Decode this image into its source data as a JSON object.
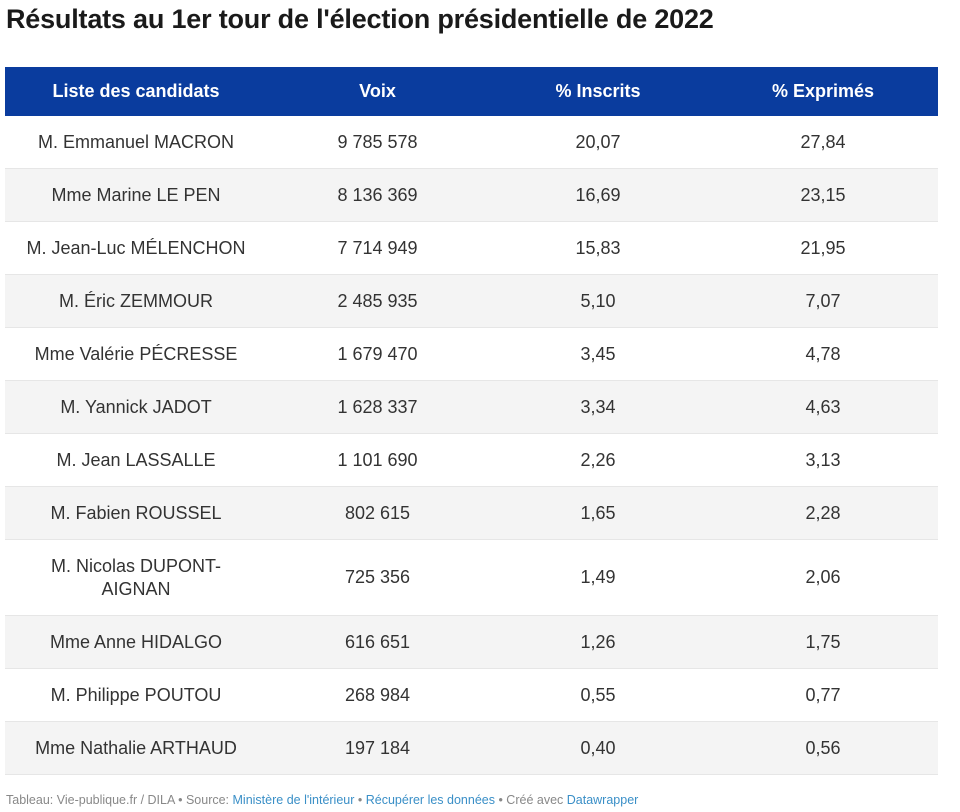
{
  "title": "Résultats au 1er tour de l'élection présidentielle de 2022",
  "chart_data": {
    "type": "table",
    "columns": [
      "Liste des candidats",
      "Voix",
      "% Inscrits",
      "% Exprimés"
    ],
    "rows": [
      [
        "M. Emmanuel MACRON",
        "9 785 578",
        "20,07",
        "27,84"
      ],
      [
        "Mme Marine LE PEN",
        "8 136 369",
        "16,69",
        "23,15"
      ],
      [
        "M. Jean-Luc MÉLENCHON",
        "7 714 949",
        "15,83",
        "21,95"
      ],
      [
        "M. Éric ZEMMOUR",
        "2 485 935",
        "5,10",
        "7,07"
      ],
      [
        "Mme Valérie PÉCRESSE",
        "1 679 470",
        "3,45",
        "4,78"
      ],
      [
        "M. Yannick JADOT",
        "1 628 337",
        "3,34",
        "4,63"
      ],
      [
        "M. Jean LASSALLE",
        "1 101 690",
        "2,26",
        "3,13"
      ],
      [
        "M. Fabien ROUSSEL",
        "802 615",
        "1,65",
        "2,28"
      ],
      [
        "M. Nicolas DUPONT-AIGNAN",
        "725 356",
        "1,49",
        "2,06"
      ],
      [
        "Mme Anne HIDALGO",
        "616 651",
        "1,26",
        "1,75"
      ],
      [
        "M. Philippe POUTOU",
        "268 984",
        "0,55",
        "0,77"
      ],
      [
        "Mme Nathalie ARTHAUD",
        "197 184",
        "0,40",
        "0,56"
      ]
    ]
  },
  "footer": {
    "prefix": "Tableau: Vie-publique.fr / DILA • Source: ",
    "source_link": "Ministère de l'intérieur",
    "sep1": " • ",
    "data_link": "Récupérer les données",
    "sep2": " • Créé avec ",
    "tool_link": "Datawrapper"
  }
}
